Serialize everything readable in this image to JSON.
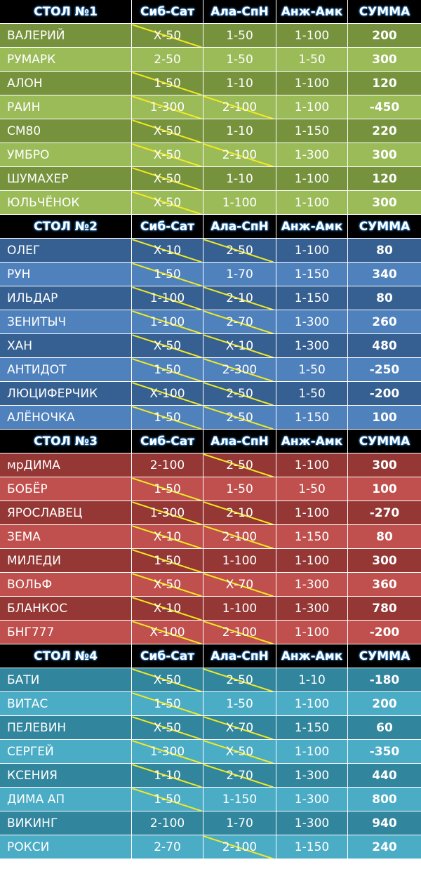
{
  "headers": [
    "Сиб-Сат",
    "Ала-СпН",
    "Анж-Амк",
    "СУММА"
  ],
  "tables": [
    {
      "title": "СТОЛ №1",
      "colors": [
        "#76923c",
        "#9bbb59"
      ],
      "rows": [
        {
          "name": "ВАЛЕРИЙ",
          "c1": "Х-50",
          "c2": "1-50",
          "c3": "1-100",
          "sum": "200",
          "s1": true,
          "s2": false
        },
        {
          "name": "РУМАРК",
          "c1": "2-50",
          "c2": "1-50",
          "c3": "1-50",
          "sum": "300",
          "s1": false,
          "s2": false
        },
        {
          "name": "АЛОН",
          "c1": "1-50",
          "c2": "1-10",
          "c3": "1-100",
          "sum": "120",
          "s1": true,
          "s2": false
        },
        {
          "name": "РАИН",
          "c1": "1-300",
          "c2": "2-100",
          "c3": "1-100",
          "sum": "-450",
          "s1": true,
          "s2": true
        },
        {
          "name": "СМ80",
          "c1": "Х-50",
          "c2": "1-10",
          "c3": "1-150",
          "sum": "220",
          "s1": true,
          "s2": false
        },
        {
          "name": "УМБРО",
          "c1": "Х-50",
          "c2": "2-100",
          "c3": "1-300",
          "sum": "300",
          "s1": true,
          "s2": true
        },
        {
          "name": "ШУМАХЕР",
          "c1": "Х-50",
          "c2": "1-10",
          "c3": "1-100",
          "sum": "120",
          "s1": true,
          "s2": false
        },
        {
          "name": "ЮЛЬЧЁНОК",
          "c1": "Х-50",
          "c2": "1-100",
          "c3": "1-100",
          "sum": "300",
          "s1": true,
          "s2": false
        }
      ]
    },
    {
      "title": "СТОЛ №2",
      "colors": [
        "#366092",
        "#4f81bd"
      ],
      "rows": [
        {
          "name": "ОЛЕГ",
          "c1": "Х-10",
          "c2": "2-50",
          "c3": "1-100",
          "sum": "80",
          "s1": true,
          "s2": true
        },
        {
          "name": "РУН",
          "c1": "1-50",
          "c2": "1-70",
          "c3": "1-150",
          "sum": "340",
          "s1": true,
          "s2": false
        },
        {
          "name": "ИЛЬДАР",
          "c1": "1-100",
          "c2": "2-10",
          "c3": "1-150",
          "sum": "80",
          "s1": true,
          "s2": true
        },
        {
          "name": "ЗЕНИТЫЧ",
          "c1": "1-100",
          "c2": "2-70",
          "c3": "1-300",
          "sum": "260",
          "s1": true,
          "s2": true
        },
        {
          "name": "ХАН",
          "c1": "Х-50",
          "c2": "Х-10",
          "c3": "1-300",
          "sum": "480",
          "s1": true,
          "s2": true
        },
        {
          "name": "АНТИДОТ",
          "c1": "1-50",
          "c2": "2-300",
          "c3": "1-50",
          "sum": "-250",
          "s1": true,
          "s2": true
        },
        {
          "name": "ЛЮЦИФЕРЧИК",
          "c1": "Х-100",
          "c2": "2-50",
          "c3": "1-50",
          "sum": "-200",
          "s1": true,
          "s2": true
        },
        {
          "name": "АЛЁНОЧКА",
          "c1": "1-50",
          "c2": "2-50",
          "c3": "1-150",
          "sum": "100",
          "s1": true,
          "s2": true
        }
      ]
    },
    {
      "title": "СТОЛ №3",
      "colors": [
        "#953735",
        "#c0504d"
      ],
      "rows": [
        {
          "name": "мрДИМА",
          "c1": "2-100",
          "c2": "2-50",
          "c3": "1-100",
          "sum": "300",
          "s1": false,
          "s2": true
        },
        {
          "name": "БОБЁР",
          "c1": "1-50",
          "c2": "1-50",
          "c3": "1-50",
          "sum": "100",
          "s1": true,
          "s2": false
        },
        {
          "name": "ЯРОСЛАВЕЦ",
          "c1": "1-300",
          "c2": "2-10",
          "c3": "1-100",
          "sum": "-270",
          "s1": true,
          "s2": true
        },
        {
          "name": "ЗЕМА",
          "c1": "Х-10",
          "c2": "2-100",
          "c3": "1-150",
          "sum": "80",
          "s1": true,
          "s2": true
        },
        {
          "name": "МИЛЕДИ",
          "c1": "1-50",
          "c2": "1-100",
          "c3": "1-100",
          "sum": "300",
          "s1": true,
          "s2": false
        },
        {
          "name": "ВОЛЬФ",
          "c1": "Х-50",
          "c2": "Х-70",
          "c3": "1-300",
          "sum": "360",
          "s1": true,
          "s2": true
        },
        {
          "name": "БЛАНКОС",
          "c1": "Х-10",
          "c2": "1-100",
          "c3": "1-300",
          "sum": "780",
          "s1": true,
          "s2": false
        },
        {
          "name": "БНГ777",
          "c1": "Х-100",
          "c2": "2-100",
          "c3": "1-100",
          "sum": "-200",
          "s1": true,
          "s2": true
        }
      ]
    },
    {
      "title": "СТОЛ №4",
      "colors": [
        "#31859c",
        "#4bacc6"
      ],
      "rows": [
        {
          "name": "БАТИ",
          "c1": "Х-50",
          "c2": "2-50",
          "c3": "1-10",
          "sum": "-180",
          "s1": true,
          "s2": true
        },
        {
          "name": "ВИТАС",
          "c1": "1-50",
          "c2": "1-50",
          "c3": "1-100",
          "sum": "200",
          "s1": true,
          "s2": false
        },
        {
          "name": "ПЕЛЕВИН",
          "c1": "Х-50",
          "c2": "Х-70",
          "c3": "1-150",
          "sum": "60",
          "s1": true,
          "s2": true
        },
        {
          "name": "СЕРГЕЙ",
          "c1": "1-300",
          "c2": "Х-50",
          "c3": "1-100",
          "sum": "-350",
          "s1": true,
          "s2": true
        },
        {
          "name": "КСЕНИЯ",
          "c1": "1-10",
          "c2": "2-70",
          "c3": "1-300",
          "sum": "440",
          "s1": true,
          "s2": true
        },
        {
          "name": "ДИМА АП",
          "c1": "1-50",
          "c2": "1-150",
          "c3": "1-300",
          "sum": "800",
          "s1": true,
          "s2": false
        },
        {
          "name": "ВИКИНГ",
          "c1": "2-100",
          "c2": "1-70",
          "c3": "1-300",
          "sum": "940",
          "s1": false,
          "s2": false
        },
        {
          "name": "РОКСИ",
          "c1": "2-70",
          "c2": "2-100",
          "c3": "1-150",
          "sum": "240",
          "s1": false,
          "s2": true
        }
      ]
    }
  ]
}
